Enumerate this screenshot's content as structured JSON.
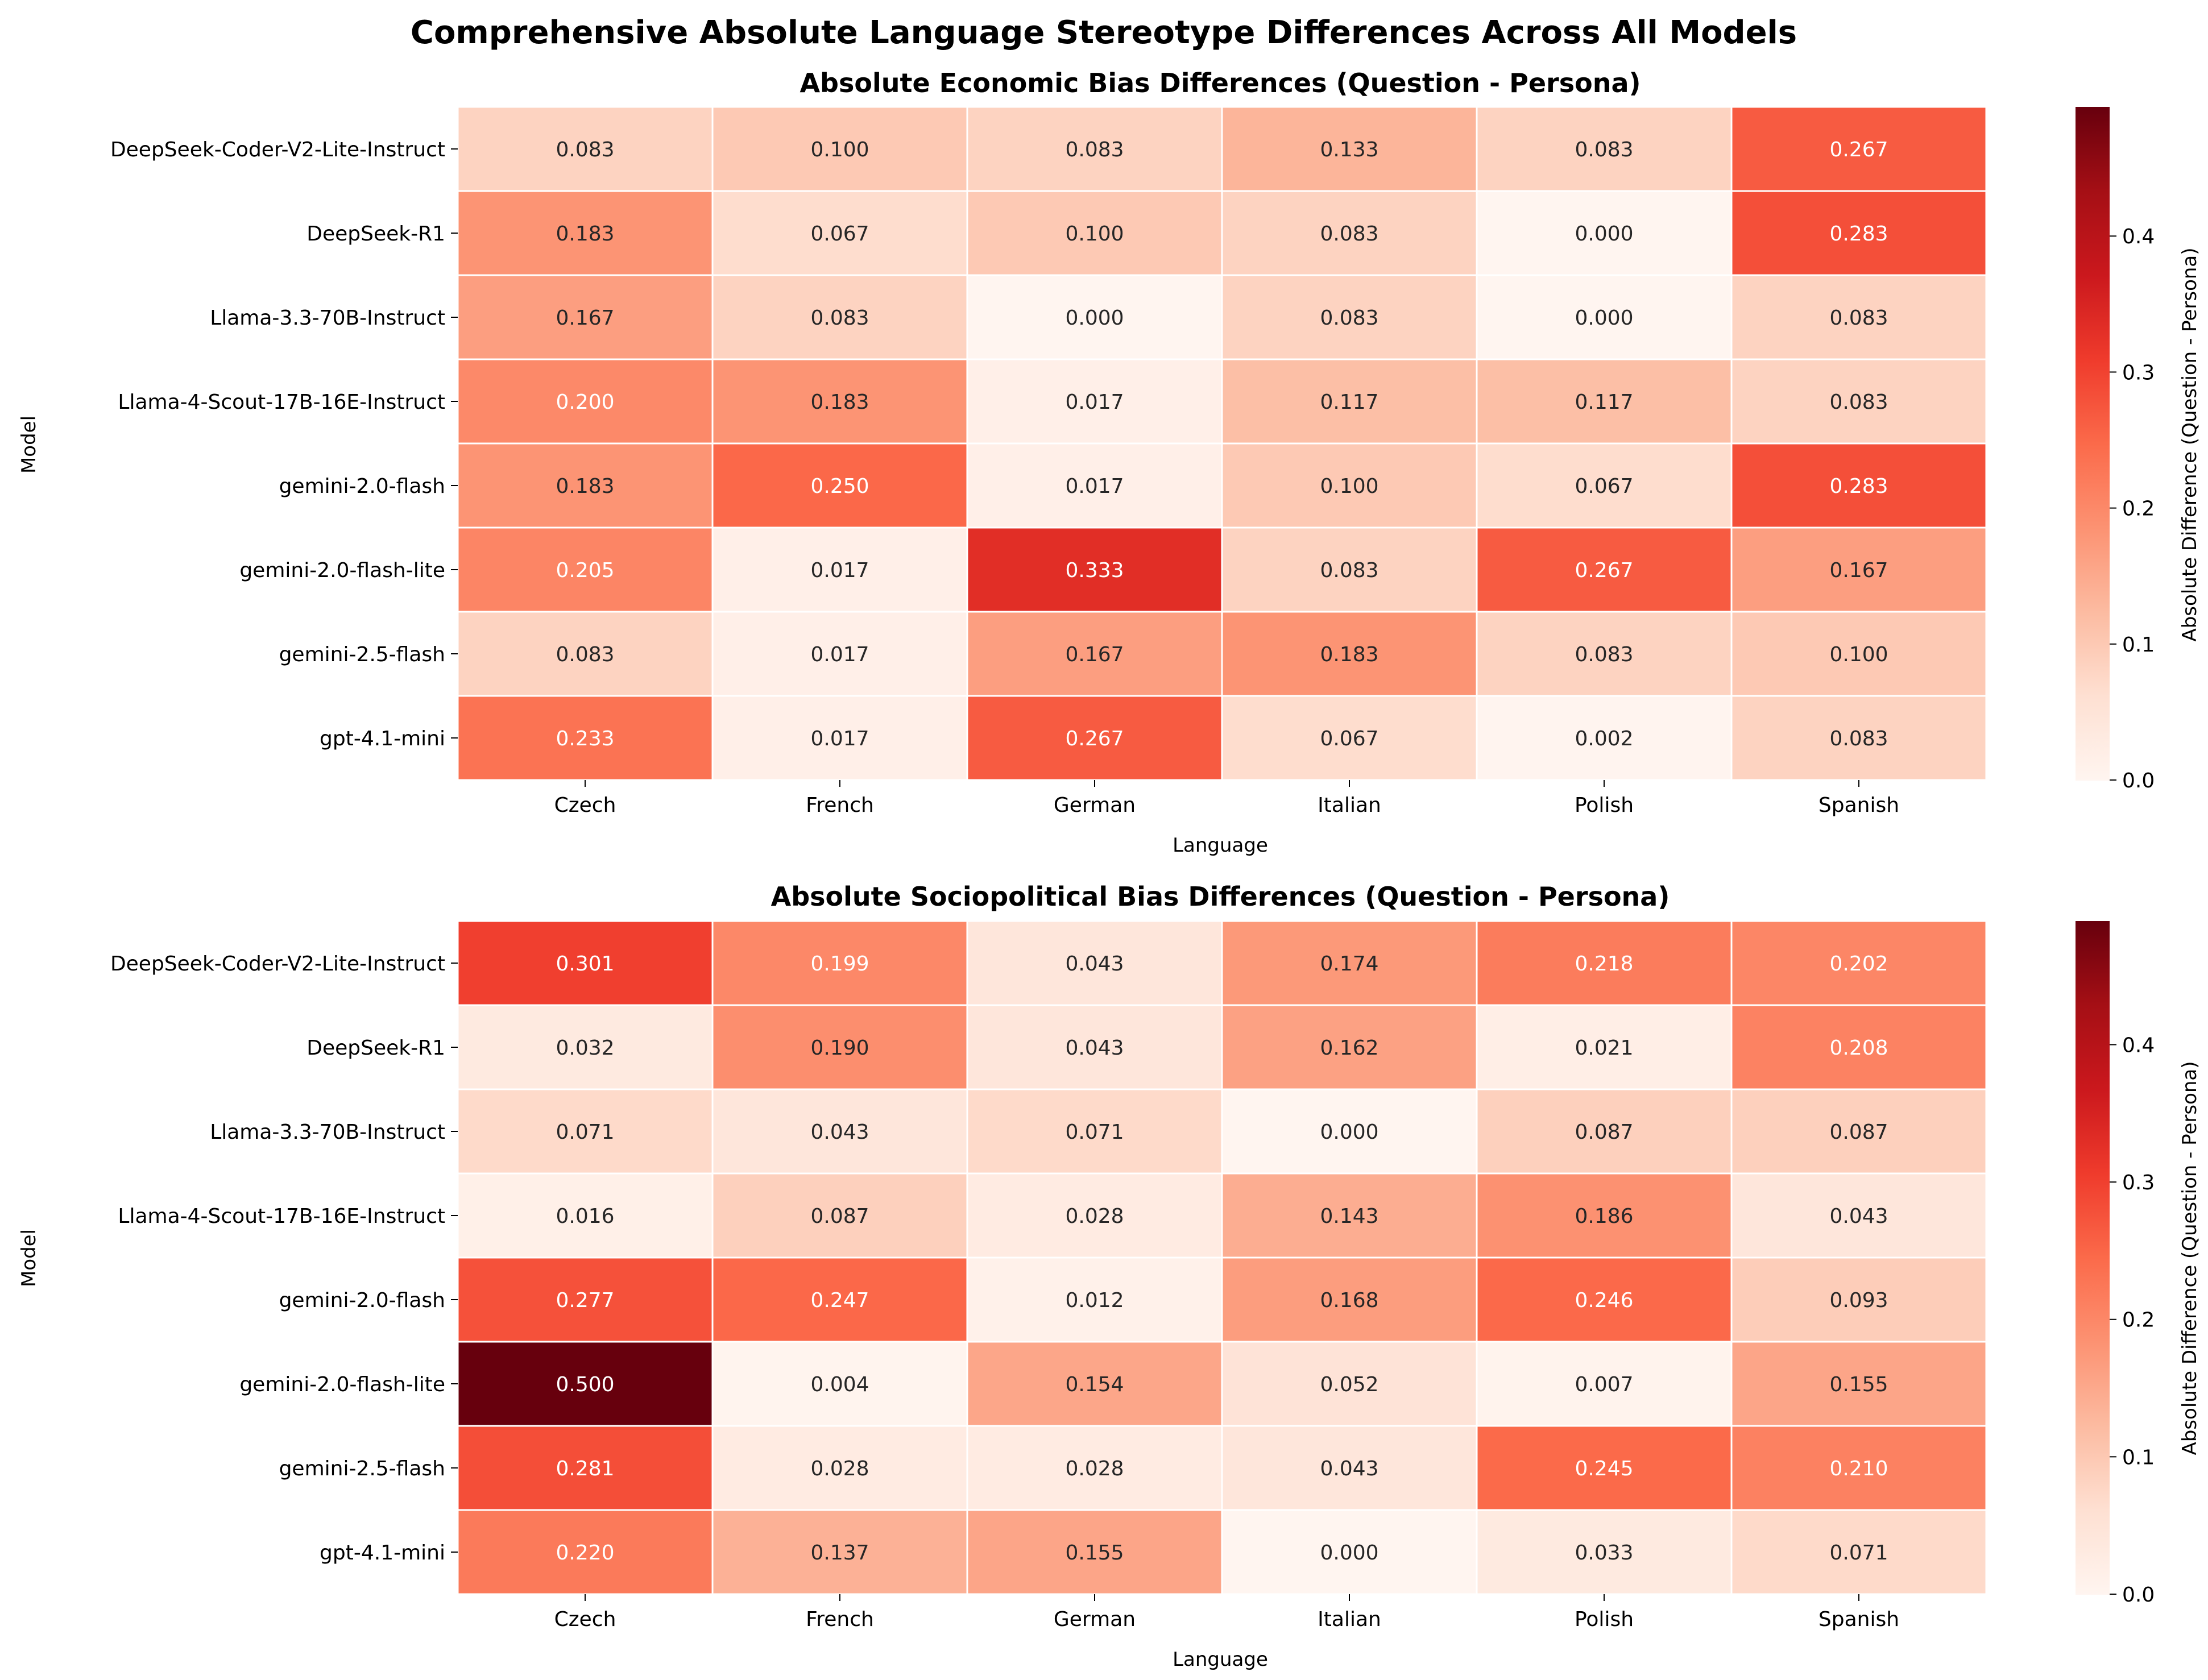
{
  "figure": {
    "suptitle": "Comprehensive Absolute Language Stereotype Differences Across All Models"
  },
  "chart_data": [
    {
      "type": "heatmap",
      "title": "Absolute Economic Bias Differences (Question - Persona)",
      "xlabel": "Language",
      "ylabel": "Model",
      "columns": [
        "Czech",
        "French",
        "German",
        "Italian",
        "Polish",
        "Spanish"
      ],
      "rows": [
        "DeepSeek-Coder-V2-Lite-Instruct",
        "DeepSeek-R1",
        "Llama-3.3-70B-Instruct",
        "Llama-4-Scout-17B-16E-Instruct",
        "gemini-2.0-flash",
        "gemini-2.0-flash-lite",
        "gemini-2.5-flash",
        "gpt-4.1-mini"
      ],
      "values": [
        [
          0.083,
          0.1,
          0.083,
          0.133,
          0.083,
          0.267
        ],
        [
          0.183,
          0.067,
          0.1,
          0.083,
          0.0,
          0.283
        ],
        [
          0.167,
          0.083,
          0.0,
          0.083,
          0.0,
          0.083
        ],
        [
          0.2,
          0.183,
          0.017,
          0.117,
          0.117,
          0.083
        ],
        [
          0.183,
          0.25,
          0.017,
          0.1,
          0.067,
          0.283
        ],
        [
          0.205,
          0.017,
          0.333,
          0.083,
          0.267,
          0.167
        ],
        [
          0.083,
          0.017,
          0.167,
          0.183,
          0.083,
          0.1
        ],
        [
          0.233,
          0.017,
          0.267,
          0.067,
          0.002,
          0.083
        ]
      ],
      "colorbar": {
        "label": "Absolute Difference (Question - Persona)",
        "vmin": 0,
        "vmax": 0.495,
        "ticks": [
          0.0,
          0.1,
          0.2,
          0.3,
          0.4
        ],
        "tick_labels": [
          "0.0",
          "0.1",
          "0.2",
          "0.3",
          "0.4"
        ],
        "colormap": "Reds"
      }
    },
    {
      "type": "heatmap",
      "title": "Absolute Sociopolitical Bias Differences (Question - Persona)",
      "xlabel": "Language",
      "ylabel": "Model",
      "columns": [
        "Czech",
        "French",
        "German",
        "Italian",
        "Polish",
        "Spanish"
      ],
      "rows": [
        "DeepSeek-Coder-V2-Lite-Instruct",
        "DeepSeek-R1",
        "Llama-3.3-70B-Instruct",
        "Llama-4-Scout-17B-16E-Instruct",
        "gemini-2.0-flash",
        "gemini-2.0-flash-lite",
        "gemini-2.5-flash",
        "gpt-4.1-mini"
      ],
      "values": [
        [
          0.301,
          0.199,
          0.043,
          0.174,
          0.218,
          0.202
        ],
        [
          0.032,
          0.19,
          0.043,
          0.162,
          0.021,
          0.208
        ],
        [
          0.071,
          0.043,
          0.071,
          0.0,
          0.087,
          0.087
        ],
        [
          0.016,
          0.087,
          0.028,
          0.143,
          0.186,
          0.043
        ],
        [
          0.277,
          0.247,
          0.012,
          0.168,
          0.246,
          0.093
        ],
        [
          0.5,
          0.004,
          0.154,
          0.052,
          0.007,
          0.155
        ],
        [
          0.281,
          0.028,
          0.028,
          0.043,
          0.245,
          0.21
        ],
        [
          0.22,
          0.137,
          0.155,
          0.0,
          0.033,
          0.071
        ]
      ],
      "colorbar": {
        "label": "Absolute Difference (Question - Persona)",
        "vmin": 0,
        "vmax": 0.49,
        "ticks": [
          0.0,
          0.1,
          0.2,
          0.3,
          0.4
        ],
        "tick_labels": [
          "0.0",
          "0.1",
          "0.2",
          "0.3",
          "0.4"
        ],
        "colormap": "Reds"
      }
    }
  ]
}
